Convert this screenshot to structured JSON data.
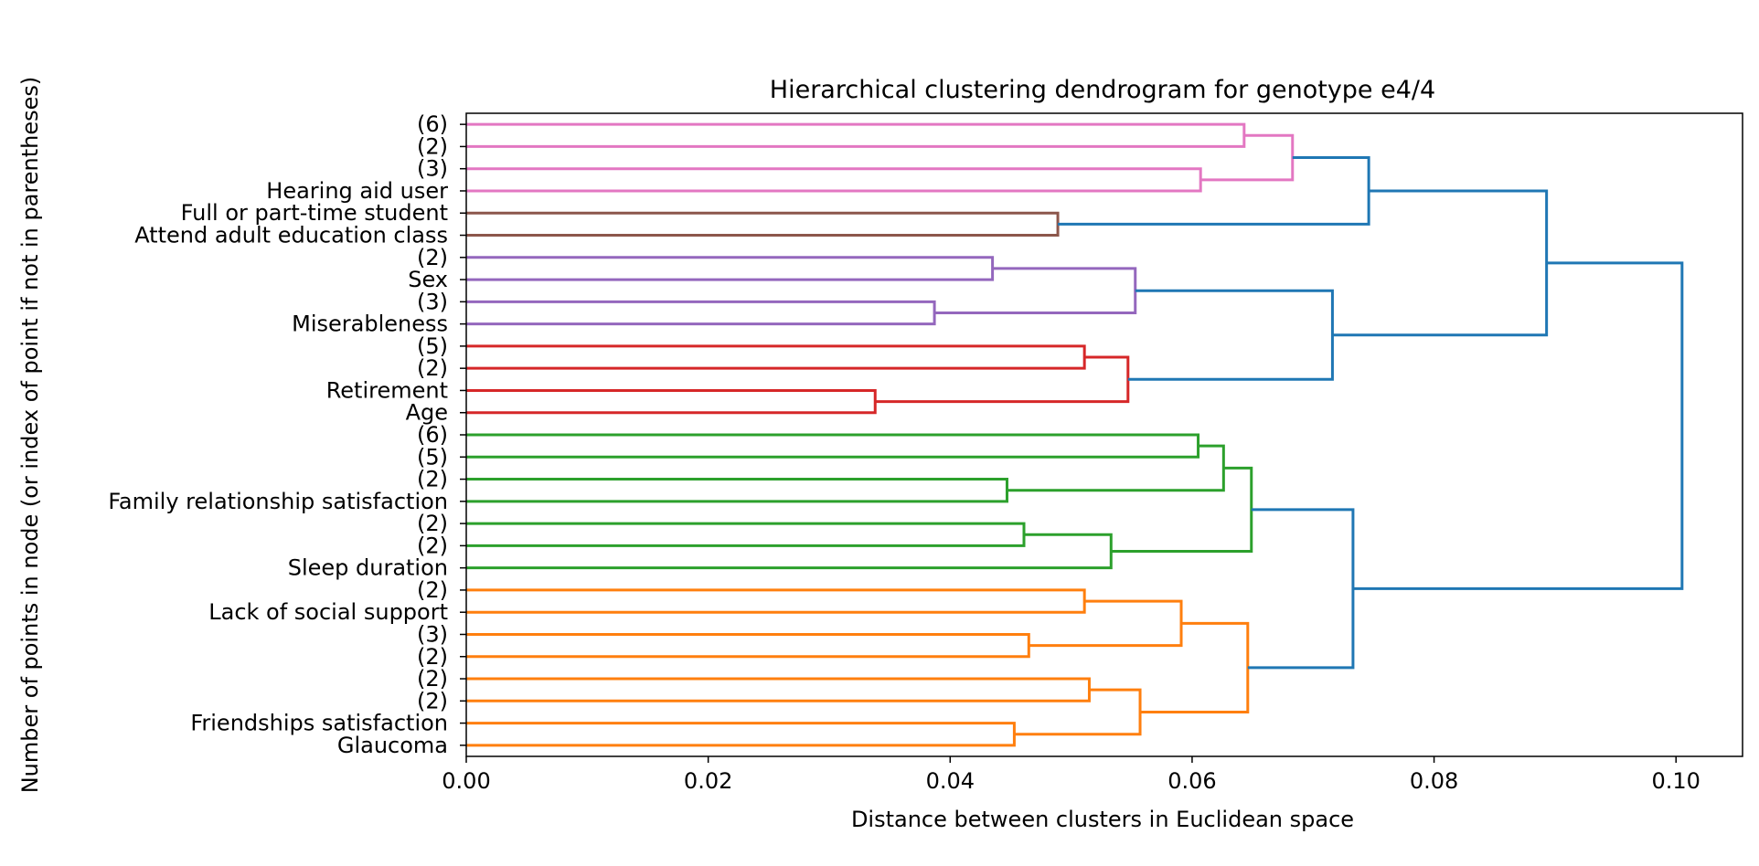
{
  "chart_data": {
    "type": "dendrogram",
    "orientation": "horizontal",
    "title": "Hierarchical clustering dendrogram for genotype e4/4",
    "xlabel": "Distance between clusters in Euclidean space",
    "ylabel": "Number of points in node (or index of point if not in parentheses)",
    "xlim": [
      0.0,
      0.1055
    ],
    "xticks": [
      0.0,
      0.02,
      0.04,
      0.06,
      0.08,
      0.1
    ],
    "xtick_labels": [
      "0.00",
      "0.02",
      "0.04",
      "0.06",
      "0.08",
      "0.10"
    ],
    "grid": false,
    "colors": {
      "pink": "#e377c2",
      "brown": "#8c564b",
      "purple": "#9467bd",
      "red": "#d62728",
      "green": "#2ca02c",
      "orange": "#ff7f0e",
      "link": "#1f77b4"
    },
    "leaves": [
      "(6)",
      "(2)",
      "(3)",
      "Hearing aid user",
      "Full or part-time student",
      "Attend adult education class",
      "(2)",
      "Sex",
      "(3)",
      "Miserableness",
      "(5)",
      "(2)",
      "Retirement",
      "Age",
      "(6)",
      "(5)",
      "(2)",
      "Family relationship satisfaction",
      "(2)",
      "(2)",
      "Sleep duration",
      "(2)",
      "Lack of social support",
      "(3)",
      "(2)",
      "(2)",
      "(2)",
      "Friendships satisfaction",
      "Glaucoma"
    ],
    "merges": [
      {
        "a": 0,
        "b": 1,
        "height": 0.0643,
        "color": "pink"
      },
      {
        "a": 2,
        "b": 3,
        "height": 0.0607,
        "color": "pink"
      },
      {
        "a": "m0",
        "b": "m1",
        "height": 0.0683,
        "color": "pink"
      },
      {
        "a": 4,
        "b": 5,
        "height": 0.0489,
        "color": "brown"
      },
      {
        "a": "m2",
        "b": "m3",
        "height": 0.0746,
        "color": "link"
      },
      {
        "a": 6,
        "b": 7,
        "height": 0.0435,
        "color": "purple"
      },
      {
        "a": 8,
        "b": 9,
        "height": 0.0387,
        "color": "purple"
      },
      {
        "a": "m5",
        "b": "m6",
        "height": 0.0553,
        "color": "purple"
      },
      {
        "a": 10,
        "b": 11,
        "height": 0.0511,
        "color": "red"
      },
      {
        "a": 12,
        "b": 13,
        "height": 0.0338,
        "color": "red"
      },
      {
        "a": "m8",
        "b": "m9",
        "height": 0.0547,
        "color": "red"
      },
      {
        "a": "m7",
        "b": "m10",
        "height": 0.0716,
        "color": "link"
      },
      {
        "a": "m4",
        "b": "m11",
        "height": 0.0893,
        "color": "link"
      },
      {
        "a": 14,
        "b": 15,
        "height": 0.0605,
        "color": "green"
      },
      {
        "a": 16,
        "b": 17,
        "height": 0.0447,
        "color": "green"
      },
      {
        "a": "m13",
        "b": "m14",
        "height": 0.0626,
        "color": "green"
      },
      {
        "a": 18,
        "b": 19,
        "height": 0.0461,
        "color": "green"
      },
      {
        "a": "m16",
        "b": 20,
        "height": 0.0533,
        "color": "green"
      },
      {
        "a": "m15",
        "b": "m17",
        "height": 0.0649,
        "color": "green"
      },
      {
        "a": 21,
        "b": 22,
        "height": 0.0511,
        "color": "orange"
      },
      {
        "a": 23,
        "b": 24,
        "height": 0.0465,
        "color": "orange"
      },
      {
        "a": "m19",
        "b": "m20",
        "height": 0.0591,
        "color": "orange"
      },
      {
        "a": 25,
        "b": 26,
        "height": 0.0515,
        "color": "orange"
      },
      {
        "a": 27,
        "b": 28,
        "height": 0.0453,
        "color": "orange"
      },
      {
        "a": "m22",
        "b": "m23",
        "height": 0.0557,
        "color": "orange"
      },
      {
        "a": "m21",
        "b": "m24",
        "height": 0.0646,
        "color": "orange"
      },
      {
        "a": "m18",
        "b": "m25",
        "height": 0.0733,
        "color": "link"
      },
      {
        "a": "m12",
        "b": "m26",
        "height": 0.1005,
        "color": "link"
      }
    ]
  }
}
